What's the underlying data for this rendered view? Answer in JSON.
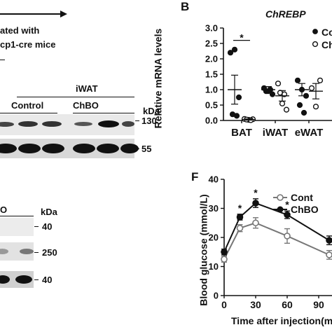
{
  "panelA": {
    "text_line1": "ated with",
    "text_line2": "cp1-cre mice"
  },
  "panelC": {
    "tissue": "iWAT",
    "group1": "Control",
    "group2": "ChBO",
    "kda_label": "kDa",
    "markers": [
      "130",
      "55"
    ]
  },
  "panelD": {
    "group_fragment": "O",
    "kda_label": "kDa",
    "markers": [
      "40",
      "250",
      "40"
    ]
  },
  "panelB": {
    "letter": "B",
    "title": "ChREBP",
    "ylabel": "Relative mRNA levels",
    "legend": [
      "Co",
      "Ch"
    ],
    "significance": "*"
  },
  "panelF": {
    "letter": "F",
    "ylabel": "Blood glucose (mmol/L)",
    "xlabel": "Time after injection(m",
    "legend": [
      "Cont",
      "ChBO"
    ],
    "significance": "*"
  },
  "chart_data": [
    {
      "type": "scatter",
      "title": "ChREBP",
      "xlabel": "",
      "ylabel": "Relative mRNA levels",
      "categories": [
        "BAT",
        "iWAT",
        "eWAT"
      ],
      "ylim": [
        0,
        3.0
      ],
      "yticks": [
        0.0,
        0.5,
        1.0,
        1.5,
        2.0,
        2.5,
        3.0
      ],
      "series": [
        {
          "name": "Co",
          "points": [
            [
              0,
              2.2
            ],
            [
              0,
              2.3
            ],
            [
              0,
              0.75
            ],
            [
              0,
              0.2
            ],
            [
              0,
              0.15
            ],
            [
              1,
              1.05
            ],
            [
              1,
              0.95
            ],
            [
              1,
              0.85
            ],
            [
              1,
              0.95
            ],
            [
              1,
              1.0
            ],
            [
              2,
              1.3
            ],
            [
              2,
              1.0
            ],
            [
              2,
              0.8
            ],
            [
              2,
              0.5
            ],
            [
              2,
              0.25
            ]
          ],
          "mean": [
            1.0,
            1.0,
            1.0
          ],
          "sem": [
            0.47,
            0.1,
            0.2
          ]
        },
        {
          "name": "Ch",
          "points": [
            [
              0,
              0.05
            ],
            [
              0,
              0.02
            ],
            [
              0,
              0.04
            ],
            [
              0,
              0.03
            ],
            [
              0,
              0.01
            ],
            [
              1,
              1.2
            ],
            [
              1,
              0.55
            ],
            [
              1,
              0.35
            ],
            [
              1,
              0.9
            ],
            [
              1,
              0.85
            ],
            [
              2,
              1.05
            ],
            [
              2,
              0.45
            ],
            [
              2,
              1.3
            ]
          ],
          "mean": [
            0.03,
            0.8,
            0.95
          ],
          "sem": [
            0.02,
            0.17,
            0.25
          ]
        }
      ],
      "annotations": [
        {
          "category": "BAT",
          "text": "*"
        }
      ]
    },
    {
      "type": "line",
      "ylabel": "Blood glucose (mmol/L)",
      "xlabel": "Time after injection(m",
      "x": [
        0,
        15,
        30,
        60,
        100
      ],
      "xticks": [
        0,
        30,
        60,
        90
      ],
      "ylim": [
        0,
        40
      ],
      "yticks": [
        0,
        10,
        20,
        30,
        40
      ],
      "grid": false,
      "legend": "top-right",
      "series": [
        {
          "name": "Cont",
          "values": [
            12.5,
            23.2,
            25.0,
            20.5,
            14.0
          ],
          "err": [
            1.0,
            1.2,
            1.8,
            2.5,
            1.5
          ]
        },
        {
          "name": "ChBO",
          "values": [
            15.0,
            27.0,
            31.8,
            27.8,
            19.0
          ],
          "err": [
            1.0,
            1.0,
            1.5,
            1.3,
            1.5
          ]
        }
      ],
      "annotations": [
        {
          "x": 15,
          "text": "*"
        },
        {
          "x": 30,
          "text": "*"
        },
        {
          "x": 60,
          "text": "*"
        }
      ]
    }
  ]
}
